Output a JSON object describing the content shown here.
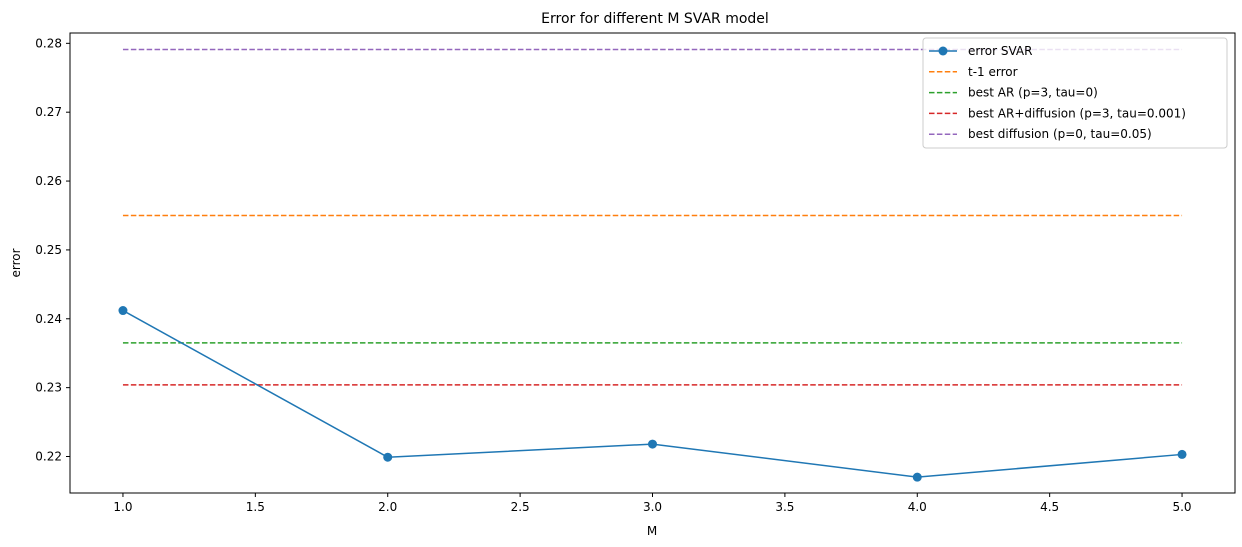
{
  "chart_data": {
    "type": "line",
    "title": "Error for different M SVAR model",
    "xlabel": "M",
    "ylabel": "error",
    "xlim": [
      0.8,
      5.2
    ],
    "ylim": [
      0.2147,
      0.2815
    ],
    "xticks": [
      1.0,
      1.5,
      2.0,
      2.5,
      3.0,
      3.5,
      4.0,
      4.5,
      5.0
    ],
    "yticks": [
      0.22,
      0.23,
      0.24,
      0.25,
      0.26,
      0.27,
      0.28
    ],
    "xtick_labels": [
      "1.0",
      "1.5",
      "2.0",
      "2.5",
      "3.0",
      "3.5",
      "4.0",
      "4.5",
      "5.0"
    ],
    "ytick_labels": [
      "0.22",
      "0.23",
      "0.24",
      "0.25",
      "0.26",
      "0.27",
      "0.28"
    ],
    "grid": false,
    "legend_position": "top-right",
    "series": [
      {
        "name": "error SVAR",
        "style": "solid-marker",
        "color": "#1f77b4",
        "x": [
          1,
          2,
          3,
          4,
          5
        ],
        "values": [
          0.2412,
          0.2199,
          0.2218,
          0.217,
          0.2203
        ]
      },
      {
        "name": "t-1 error",
        "style": "dashed",
        "color": "#ff7f0e",
        "x": [
          1,
          5
        ],
        "values": [
          0.255,
          0.255
        ]
      },
      {
        "name": "best AR (p=3, tau=0)",
        "style": "dashed",
        "color": "#2ca02c",
        "x": [
          1,
          5
        ],
        "values": [
          0.2365,
          0.2365
        ]
      },
      {
        "name": "best AR+diffusion (p=3, tau=0.001)",
        "style": "dashed",
        "color": "#d62728",
        "x": [
          1,
          5
        ],
        "values": [
          0.2304,
          0.2304
        ]
      },
      {
        "name": "best diffusion (p=0, tau=0.05)",
        "style": "dashed",
        "color": "#9467bd",
        "x": [
          1,
          5
        ],
        "values": [
          0.2791,
          0.2791
        ]
      }
    ]
  }
}
